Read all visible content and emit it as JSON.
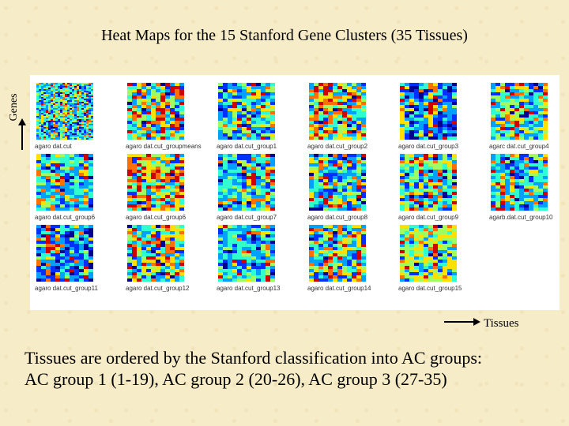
{
  "title": "Heat Maps for the 15  Stanford Gene Clusters  (35 Tissues)",
  "y_axis_label": "Genes",
  "x_axis_label": "Tissues",
  "heatmaps": [
    {
      "label": "agaro dat.cut",
      "palette": "cool"
    },
    {
      "label": "agaro dat.cut_groupmeans",
      "palette": "warm"
    },
    {
      "label": "agaro dat.cut_group1",
      "palette": "mixed"
    },
    {
      "label": "agaro dat.cut_group2",
      "palette": "warm"
    },
    {
      "label": "agaro dat.cut_group3",
      "palette": "blue"
    },
    {
      "label": "agarc dat.cut_group4",
      "palette": "mixed"
    },
    {
      "label": "agaro dat.cut_group6",
      "palette": "cool"
    },
    {
      "label": "agaro dat.cut_group6",
      "palette": "hot"
    },
    {
      "label": "agaro dat.cut_group7",
      "palette": "cool"
    },
    {
      "label": "agaro dat.cut_group8",
      "palette": "mixed"
    },
    {
      "label": "agaro dat.cut_group9",
      "palette": "warm"
    },
    {
      "label": "agarb.dat.cut_group10",
      "palette": "cool"
    },
    {
      "label": "agaro dat.cut_group11",
      "palette": "blue"
    },
    {
      "label": "agaro dat.cut_group12",
      "palette": "warm"
    },
    {
      "label": "agaro dat.cut_group13",
      "palette": "cool"
    },
    {
      "label": "agaro dat.cut_group14",
      "palette": "mixed"
    },
    {
      "label": "agaro dat.cut_group15",
      "palette": "yellow"
    }
  ],
  "note_lines": [
    "Tissues are ordered by the Stanford  classification into AC groups:",
    "AC group 1 (1-19), AC group 2 (20-26), AC group 3 (27-35)"
  ],
  "colors": {
    "background": "#f7ecc8",
    "jet_scale": [
      "#00008f",
      "#0030ff",
      "#00a0ff",
      "#30ffd0",
      "#a0ff60",
      "#ffe000",
      "#ff7000",
      "#d00000"
    ]
  }
}
